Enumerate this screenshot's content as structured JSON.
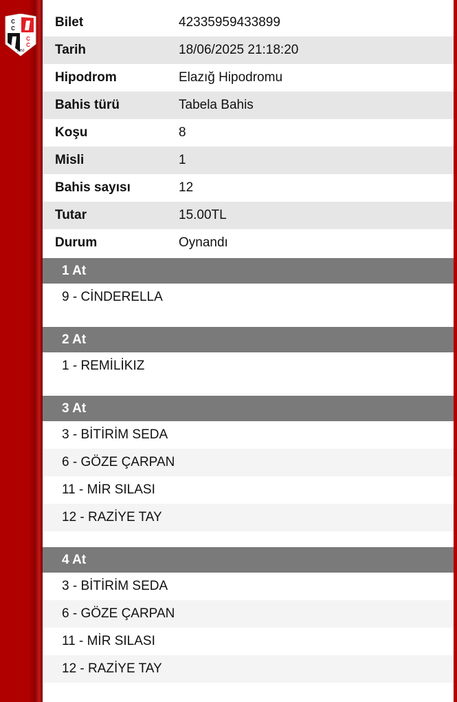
{
  "ticket": [
    {
      "label": "Bilet",
      "value": "42335959433899"
    },
    {
      "label": "Tarih",
      "value": "18/06/2025 21:18:20"
    },
    {
      "label": "Hipodrom",
      "value": "Elazığ Hipodromu"
    },
    {
      "label": "Bahis türü",
      "value": "Tabela Bahis"
    },
    {
      "label": "Koşu",
      "value": "8"
    },
    {
      "label": "Misli",
      "value": "1"
    },
    {
      "label": "Bahis sayısı",
      "value": "12"
    },
    {
      "label": "Tutar",
      "value": "15.00TL"
    },
    {
      "label": "Durum",
      "value": "Oynandı"
    }
  ],
  "sections": [
    {
      "title": "1 At",
      "horses": [
        "9 - CİNDERELLA"
      ]
    },
    {
      "title": "2 At",
      "horses": [
        "1 - REMİLİKIZ"
      ]
    },
    {
      "title": "3 At",
      "horses": [
        "3 - BİTİRİM SEDA",
        "6 - GÖZE ÇARPAN",
        "11 - MİR SILASI",
        "12 - RAZİYE TAY"
      ]
    },
    {
      "title": "4 At",
      "horses": [
        "3 - BİTİRİM SEDA",
        "6 - GÖZE ÇARPAN",
        "11 - MİR SILASI",
        "12 - RAZİYE TAY"
      ]
    }
  ],
  "logo": {
    "text": "CC 1950"
  },
  "colors": {
    "brand": "#b00000",
    "section_header": "#7a7a7a"
  }
}
